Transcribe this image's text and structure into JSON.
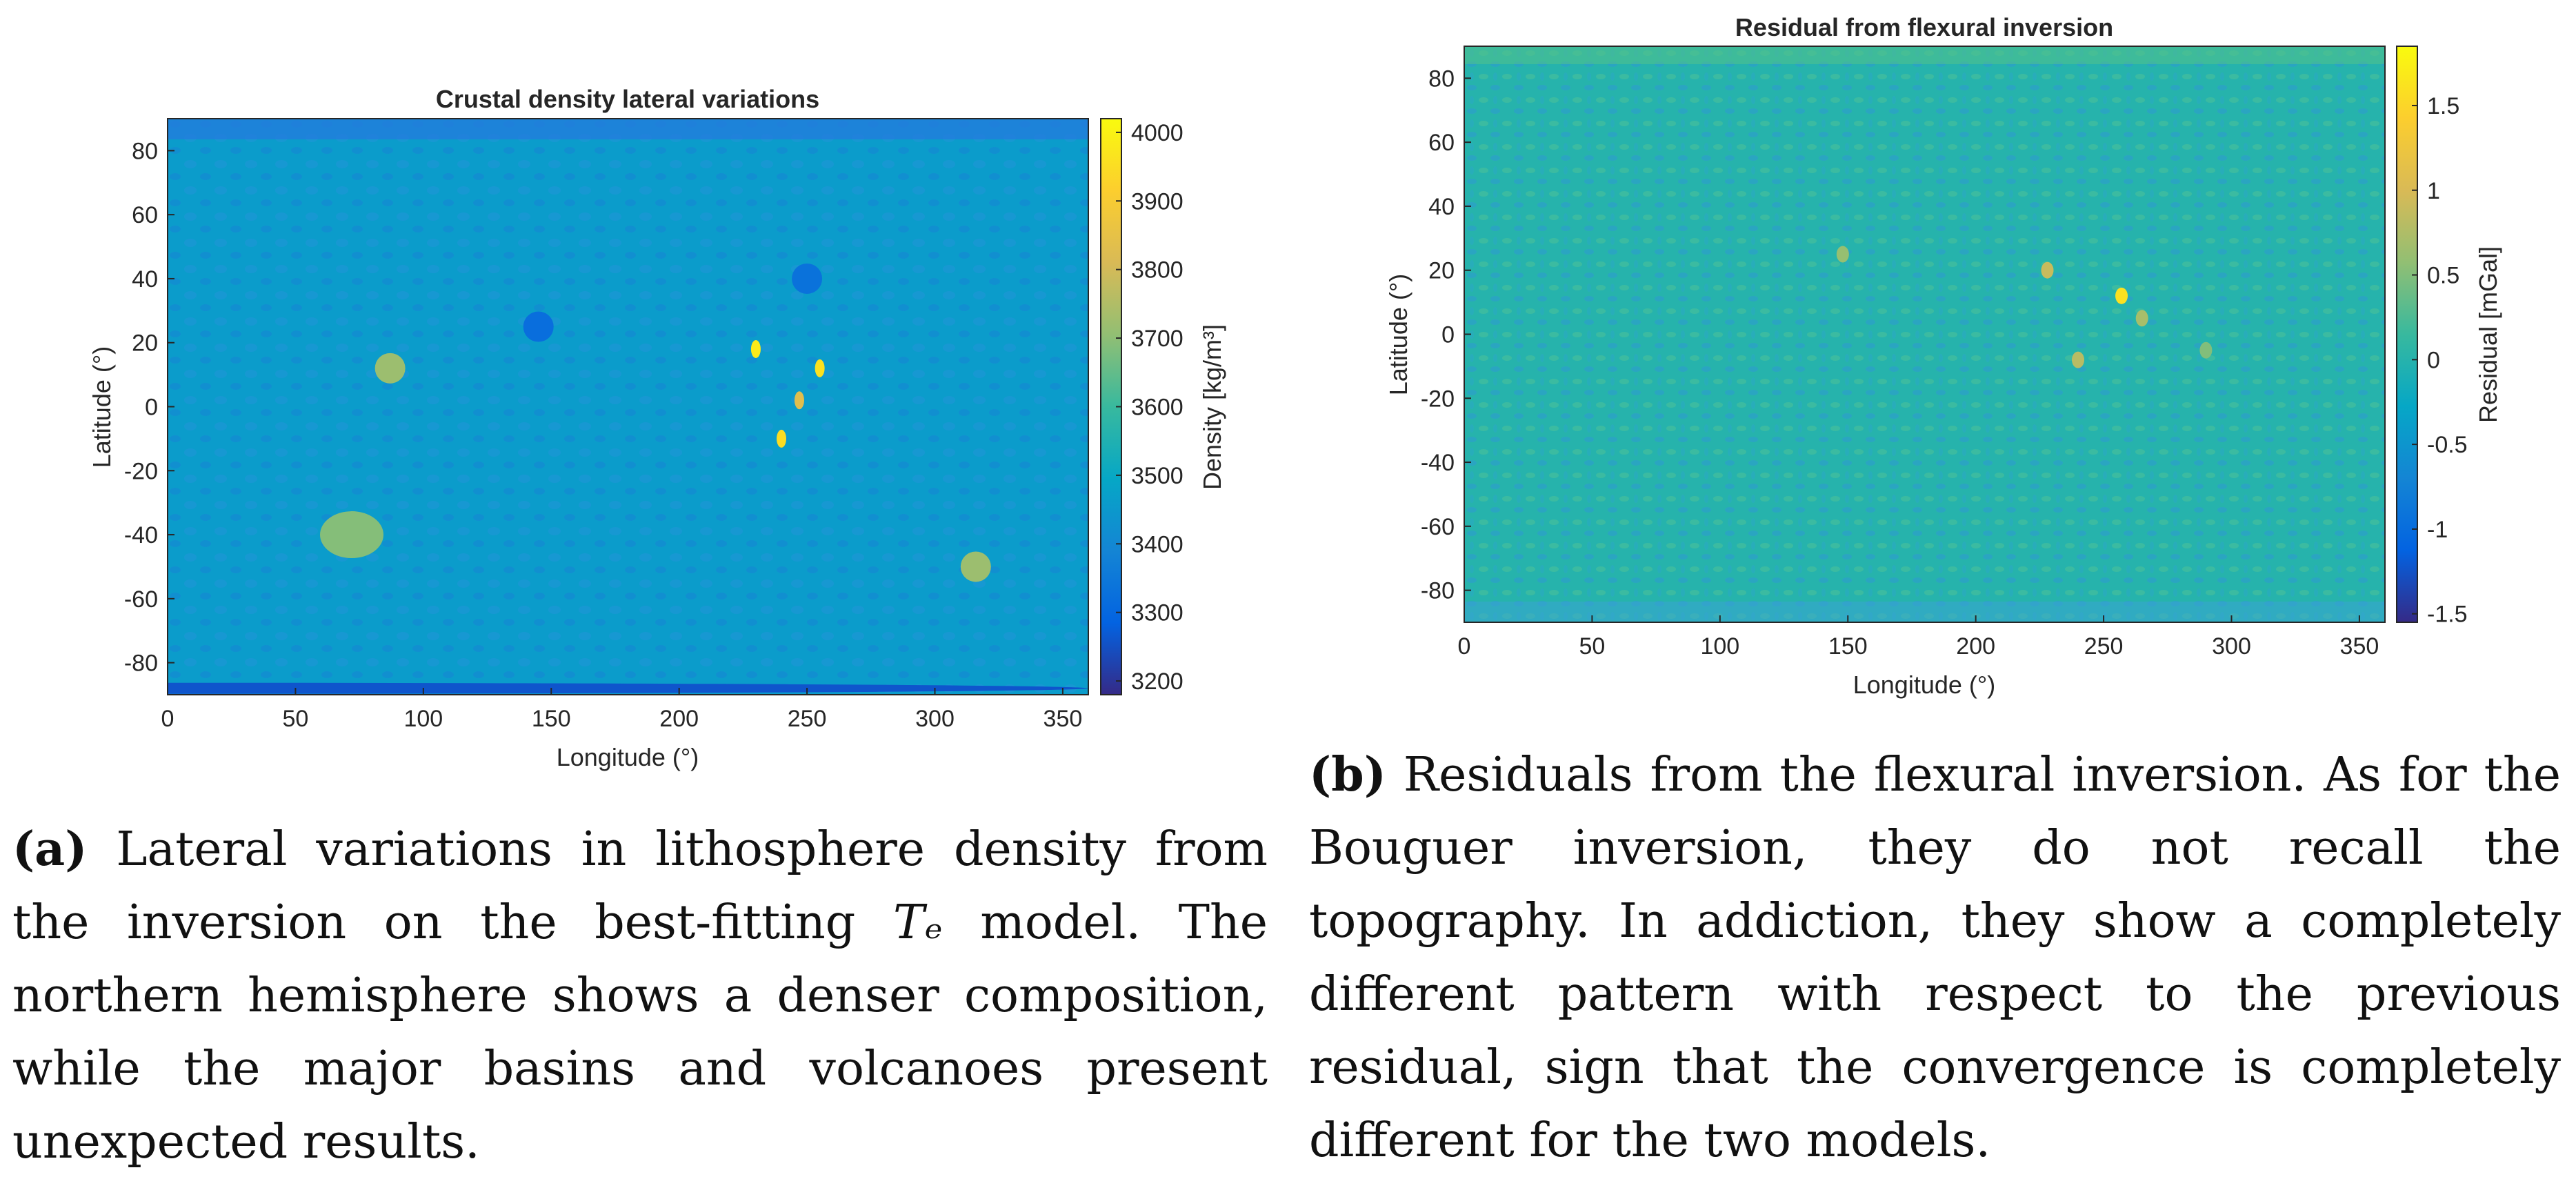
{
  "chart_data": [
    {
      "type": "heatmap",
      "title": "Crustal density lateral variations",
      "xlabel": "Longitude (°)",
      "ylabel": "Latitude (°)",
      "xlim": [
        0,
        360
      ],
      "ylim": [
        -90,
        90
      ],
      "xticks": [
        "0",
        "50",
        "100",
        "150",
        "200",
        "250",
        "300",
        "350"
      ],
      "yticks": [
        "80",
        "60",
        "40",
        "20",
        "0",
        "-20",
        "-40",
        "-60",
        "-80"
      ],
      "colorbar": {
        "label": "Density [kg/m³]",
        "range": [
          3180,
          4020
        ],
        "ticks": [
          "4000",
          "3900",
          "3800",
          "3700",
          "3600",
          "3500",
          "3400",
          "3300",
          "3200"
        ]
      },
      "colormap": "parula",
      "background_value": 3460,
      "features": [
        {
          "lon": 87,
          "lat": 12,
          "value": 3720
        },
        {
          "lon": 72,
          "lat": -40,
          "value": 3690
        },
        {
          "lon": 316,
          "lat": -50,
          "value": 3720
        },
        {
          "lon": 230,
          "lat": 18,
          "value": 3980
        },
        {
          "lon": 255,
          "lat": 12,
          "value": 3960
        },
        {
          "lon": 240,
          "lat": -10,
          "value": 3950
        },
        {
          "lon": 247,
          "lat": 2,
          "value": 3830
        },
        {
          "lon": 145,
          "lat": 25,
          "value": 3320
        },
        {
          "lon": 250,
          "lat": 40,
          "value": 3330
        },
        {
          "lon": 0,
          "lat": -88,
          "value": 3260
        }
      ]
    },
    {
      "type": "heatmap",
      "title": "Residual from flexural inversion",
      "xlabel": "Longitude (°)",
      "ylabel": "Latitude (°)",
      "xlim": [
        0,
        360
      ],
      "ylim": [
        -90,
        90
      ],
      "xticks": [
        "0",
        "50",
        "100",
        "150",
        "200",
        "250",
        "300",
        "350"
      ],
      "yticks": [
        "80",
        "60",
        "40",
        "20",
        "0",
        "-20",
        "-40",
        "-60",
        "-80"
      ],
      "colorbar": {
        "label": "Residual [mGal]",
        "range": [
          -1.55,
          1.85
        ],
        "ticks": [
          "1.5",
          "1",
          "0.5",
          "0",
          "-0.5",
          "-1",
          "-1.5"
        ]
      },
      "colormap": "parula",
      "background_value": 0,
      "features": [
        {
          "lon": 257,
          "lat": 12,
          "value": 1.6
        },
        {
          "lon": 228,
          "lat": 20,
          "value": 0.9
        },
        {
          "lon": 240,
          "lat": -8,
          "value": 0.8
        },
        {
          "lon": 148,
          "lat": 25,
          "value": 0.6
        },
        {
          "lon": 265,
          "lat": 5,
          "value": 0.7
        },
        {
          "lon": 290,
          "lat": -5,
          "value": 0.5
        }
      ]
    }
  ],
  "captions": {
    "a": {
      "label": "(a)",
      "text_1": "Lateral variations in lithosphere density from the inversion on the best-fitting",
      "te": "Tₑ",
      "text_2": "model.  The northern hemisphere shows a denser composition, while the major basins and volcanoes present unexpected results."
    },
    "b": {
      "label": "(b)",
      "text": "Residuals from the flexural inversion.  As for the Bouguer inversion, they do not recall the topography. In addiction, they show a completely different pattern with respect to the previous residual, sign that the convergence is completely different for the two models."
    }
  }
}
